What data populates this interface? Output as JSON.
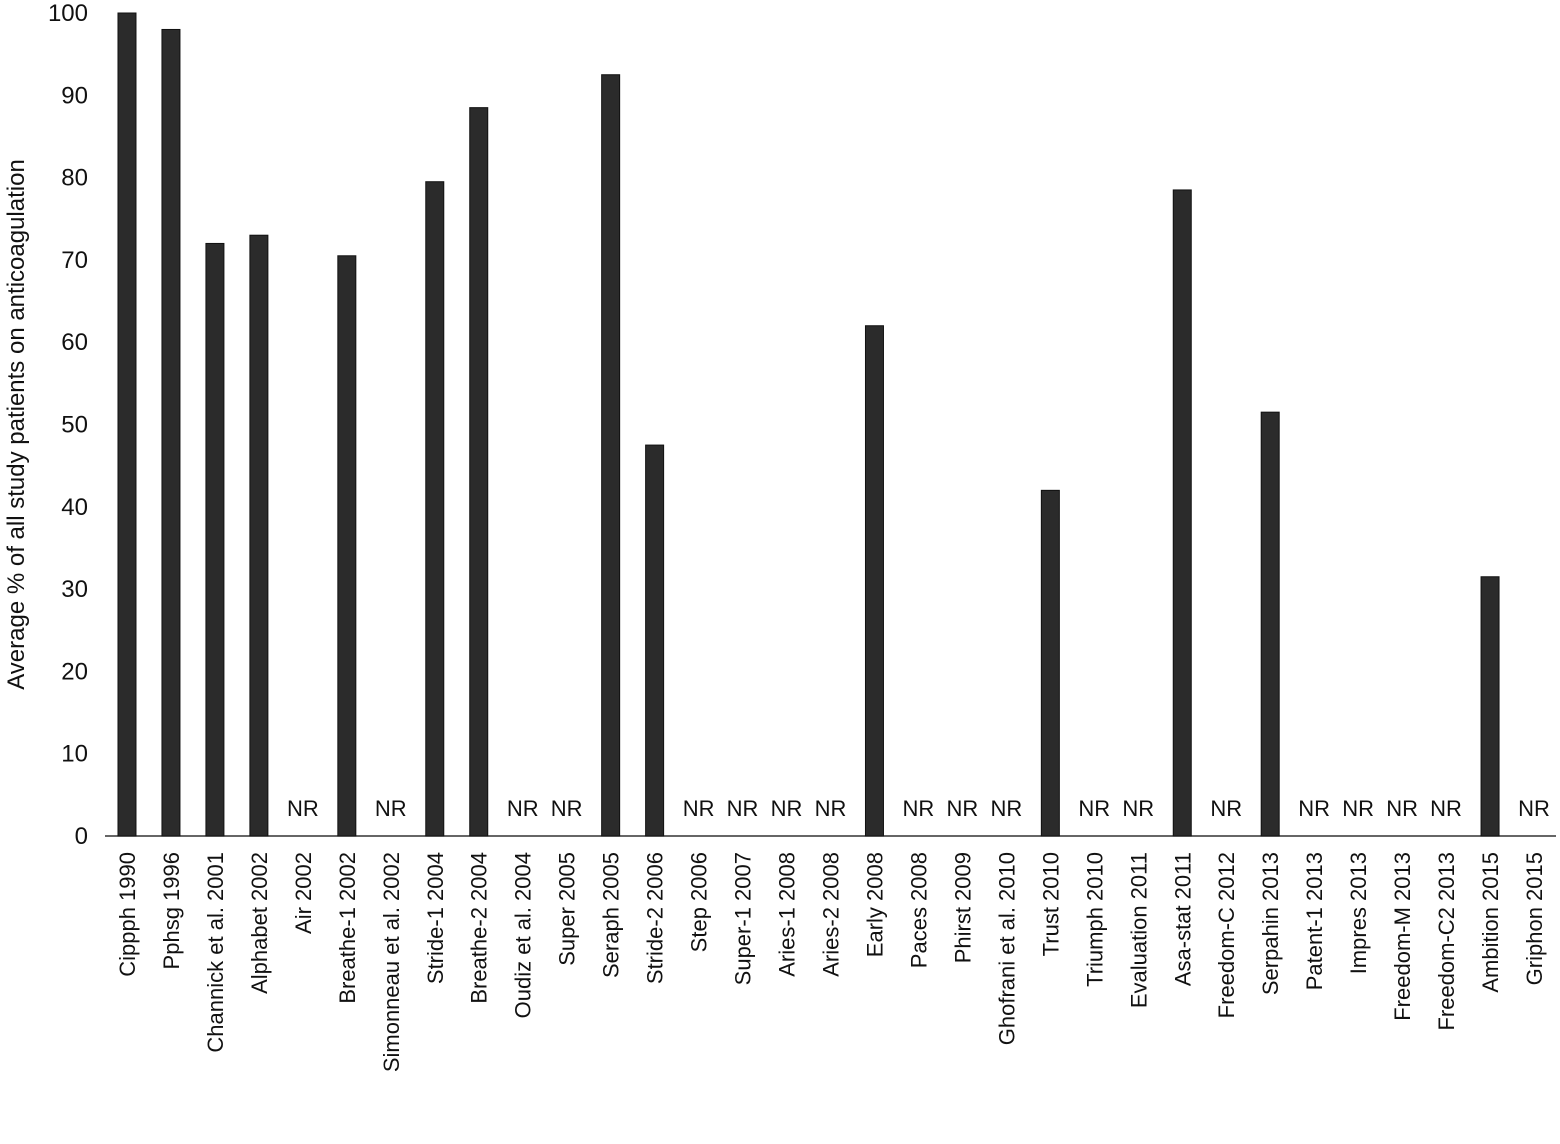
{
  "chart_data": {
    "type": "bar",
    "title": "",
    "xlabel": "",
    "ylabel": "Average % of all study patients on anticoagulation",
    "ylim": [
      0,
      100
    ],
    "yticks": [
      0,
      10,
      20,
      30,
      40,
      50,
      60,
      70,
      80,
      90,
      100
    ],
    "grid": false,
    "legend": "none",
    "bar_color": "#2b2b2b",
    "missing_label": "NR",
    "categories": [
      "Cippph 1990",
      "Pphsg 1996",
      "Channick et al. 2001",
      "Alphabet 2002",
      "Air 2002",
      "Breathe-1 2002",
      "Simonneau et al. 2002",
      "Stride-1 2004",
      "Breathe-2 2004",
      "Oudiz et al. 2004",
      "Super 2005",
      "Seraph 2005",
      "Stride-2 2006",
      "Step 2006",
      "Super-1 2007",
      "Aries-1 2008",
      "Aries-2 2008",
      "Early 2008",
      "Paces 2008",
      "Phirst 2009",
      "Ghofrani et al. 2010",
      "Trust 2010",
      "Triumph 2010",
      "Evaluation 2011",
      "Asa-stat 2011",
      "Freedom-C 2012",
      "Serpahin 2013",
      "Patent-1 2013",
      "Impres 2013",
      "Freedom-M 2013",
      "Freedom-C2 2013",
      "Ambition 2015",
      "Griphon 2015"
    ],
    "values": [
      100,
      98,
      72,
      73,
      null,
      70.5,
      null,
      79.5,
      88.5,
      null,
      null,
      92.5,
      47.5,
      null,
      null,
      null,
      null,
      62,
      null,
      null,
      null,
      42,
      null,
      null,
      78.5,
      null,
      51.5,
      null,
      null,
      null,
      null,
      31.5,
      null
    ]
  }
}
